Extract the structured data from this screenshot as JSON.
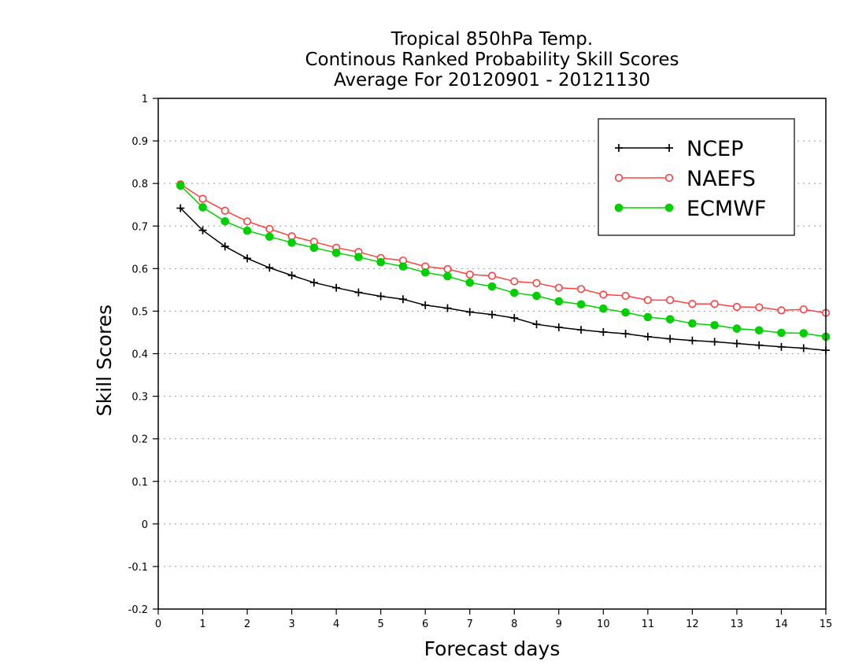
{
  "chart_data": {
    "type": "line",
    "title_lines": [
      "Tropical 850hPa Temp.",
      "Continous Ranked Probability Skill Scores",
      "Average For 20120901 - 20121130"
    ],
    "xlabel": "Forecast days",
    "ylabel": "Skill Scores",
    "xlim": [
      0,
      15
    ],
    "ylim": [
      -0.2,
      1
    ],
    "xticks": [
      0,
      1,
      2,
      3,
      4,
      5,
      6,
      7,
      8,
      9,
      10,
      11,
      12,
      13,
      14,
      15
    ],
    "xtick_labels": [
      "0",
      "1",
      "2",
      "3",
      "4",
      "5",
      "6",
      "7",
      "8",
      "9",
      "10",
      "11",
      "12",
      "13",
      "14",
      "15"
    ],
    "yticks": [
      -0.2,
      -0.1,
      0,
      0.1,
      0.2,
      0.3,
      0.4,
      0.5,
      0.6,
      0.7,
      0.8,
      0.9,
      1
    ],
    "ytick_labels": [
      "-0.2",
      "-0.1",
      "0",
      "0.1",
      "0.2",
      "0.3",
      "0.4",
      "0.5",
      "0.6",
      "0.7",
      "0.8",
      "0.9",
      "1"
    ],
    "grid": "horizontal-dotted",
    "legend_position": "top-right",
    "x": [
      0.5,
      1,
      1.5,
      2,
      2.5,
      3,
      3.5,
      4,
      4.5,
      5,
      5.5,
      6,
      6.5,
      7,
      7.5,
      8,
      8.5,
      9,
      9.5,
      10,
      10.5,
      11,
      11.5,
      12,
      12.5,
      13,
      13.5,
      14,
      14.5,
      15
    ],
    "series": [
      {
        "name": "NCEP",
        "color": "#000000",
        "marker": "plus",
        "values": [
          0.742,
          0.69,
          0.652,
          0.624,
          0.602,
          0.584,
          0.567,
          0.555,
          0.544,
          0.535,
          0.528,
          0.514,
          0.507,
          0.498,
          0.492,
          0.484,
          0.469,
          0.462,
          0.456,
          0.451,
          0.447,
          0.44,
          0.435,
          0.431,
          0.428,
          0.424,
          0.42,
          0.416,
          0.413,
          0.408
        ]
      },
      {
        "name": "NAEFS",
        "color": "#ff4040",
        "marker": "open-circle",
        "values": [
          0.798,
          0.764,
          0.736,
          0.711,
          0.693,
          0.676,
          0.663,
          0.649,
          0.639,
          0.625,
          0.619,
          0.605,
          0.599,
          0.586,
          0.583,
          0.57,
          0.566,
          0.555,
          0.552,
          0.539,
          0.536,
          0.526,
          0.526,
          0.517,
          0.517,
          0.51,
          0.509,
          0.502,
          0.504,
          0.496
        ]
      },
      {
        "name": "ECMWF",
        "color": "#00d000",
        "marker": "filled-circle",
        "values": [
          0.795,
          0.744,
          0.711,
          0.689,
          0.675,
          0.661,
          0.649,
          0.637,
          0.627,
          0.615,
          0.605,
          0.591,
          0.582,
          0.567,
          0.558,
          0.543,
          0.536,
          0.523,
          0.516,
          0.506,
          0.497,
          0.486,
          0.481,
          0.471,
          0.467,
          0.459,
          0.455,
          0.449,
          0.448,
          0.44
        ]
      }
    ]
  }
}
